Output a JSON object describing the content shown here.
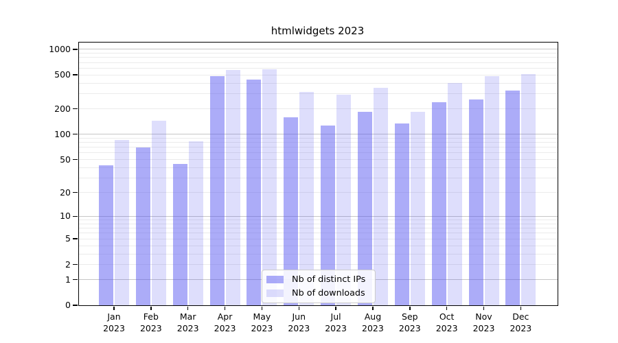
{
  "chart_data": {
    "type": "bar",
    "title": "htmlwidgets 2023",
    "categories": [
      "Jan 2023",
      "Feb 2023",
      "Mar 2023",
      "Apr 2023",
      "May 2023",
      "Jun 2023",
      "Jul 2023",
      "Aug 2023",
      "Sep 2023",
      "Oct 2023",
      "Nov 2023",
      "Dec 2023"
    ],
    "series": [
      {
        "name": "Nb of distinct IPs",
        "color": "rgba(82,82,240,0.48)",
        "values": [
          43,
          70,
          44,
          485,
          440,
          160,
          127,
          185,
          135,
          240,
          255,
          325
        ]
      },
      {
        "name": "Nb of downloads",
        "color": "rgba(82,82,240,0.19)",
        "values": [
          85,
          145,
          82,
          570,
          580,
          315,
          295,
          350,
          185,
          400,
          485,
          510
        ]
      }
    ],
    "y_scale": "log1p",
    "y_ticks": [
      0,
      1,
      2,
      5,
      10,
      20,
      50,
      100,
      200,
      500,
      1000
    ],
    "ylim": [
      0,
      1200
    ],
    "xlabel": "",
    "ylabel": "",
    "grid": "on",
    "legend_position": "lower center",
    "colors": {
      "major_grid": "#c6c6c6",
      "minor_grid": "#ebebeb",
      "axis": "#000000",
      "background": "#ffffff"
    }
  }
}
